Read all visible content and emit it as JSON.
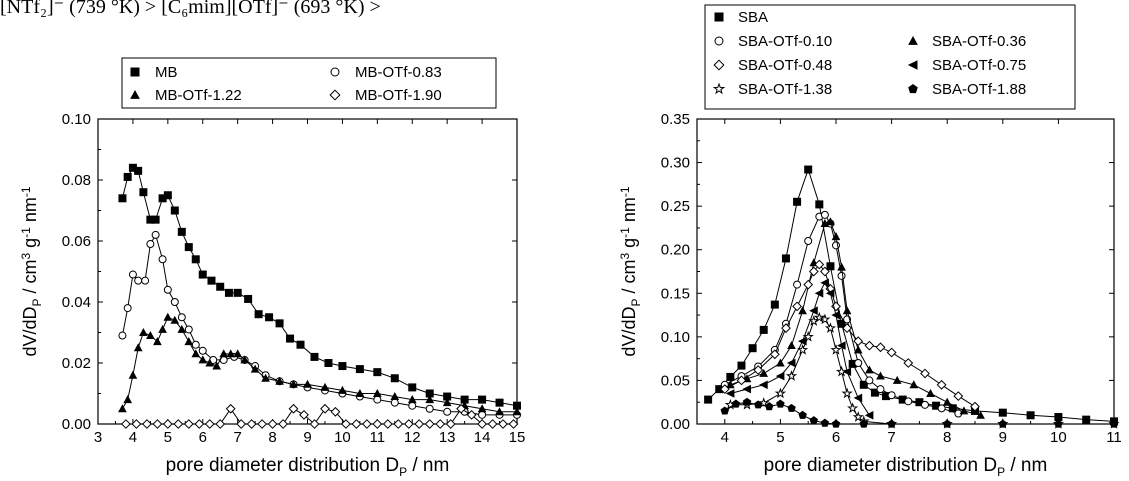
{
  "header_fragment": "[NTf₂]⁻ (739 °K) > [C₆mim][OTf]⁻ (693 °K) >",
  "chart_data": [
    {
      "type": "scatter",
      "title": "",
      "xlabel": "pore diameter distribution D_P / nm",
      "ylabel": "dV/dD_P / cm³ g⁻¹ nm⁻¹",
      "xlim": [
        3,
        15
      ],
      "ylim": [
        0,
        0.1
      ],
      "xticks": [
        3,
        4,
        5,
        6,
        7,
        8,
        9,
        10,
        11,
        12,
        13,
        14,
        15
      ],
      "yticks": [
        0.0,
        0.02,
        0.04,
        0.06,
        0.08,
        0.1
      ],
      "ytick_labels": [
        "0.00",
        "0.02",
        "0.04",
        "0.06",
        "0.08",
        "0.10"
      ],
      "legend": "top, two columns, boxed",
      "lines": "connected markers",
      "series": [
        {
          "name": "MB",
          "marker": "square-filled",
          "x": [
            3.7,
            3.85,
            4.0,
            4.15,
            4.3,
            4.5,
            4.65,
            4.85,
            5.0,
            5.2,
            5.4,
            5.6,
            5.8,
            6.0,
            6.25,
            6.5,
            6.75,
            7.0,
            7.3,
            7.6,
            7.9,
            8.2,
            8.5,
            8.8,
            9.2,
            9.6,
            10.0,
            10.5,
            11.0,
            11.5,
            12.0,
            12.5,
            13.0,
            13.5,
            14.0,
            14.5,
            15.0
          ],
          "y": [
            0.074,
            0.081,
            0.084,
            0.083,
            0.076,
            0.067,
            0.067,
            0.074,
            0.075,
            0.07,
            0.063,
            0.058,
            0.054,
            0.049,
            0.047,
            0.045,
            0.043,
            0.043,
            0.041,
            0.036,
            0.035,
            0.033,
            0.028,
            0.026,
            0.022,
            0.02,
            0.019,
            0.018,
            0.017,
            0.015,
            0.012,
            0.01,
            0.009,
            0.008,
            0.008,
            0.007,
            0.006
          ]
        },
        {
          "name": "MB-OTf-0.83",
          "marker": "circle-open",
          "x": [
            3.7,
            3.85,
            4.0,
            4.15,
            4.35,
            4.5,
            4.65,
            4.85,
            5.0,
            5.2,
            5.4,
            5.6,
            5.8,
            6.0,
            6.3,
            6.6,
            6.9,
            7.2,
            7.5,
            7.8,
            8.2,
            8.6,
            9.0,
            9.5,
            10.0,
            10.5,
            11.0,
            11.5,
            12.0,
            12.5,
            13.0,
            13.5,
            14.0,
            14.5,
            15.0
          ],
          "y": [
            0.029,
            0.038,
            0.049,
            0.047,
            0.047,
            0.059,
            0.062,
            0.054,
            0.044,
            0.04,
            0.035,
            0.031,
            0.026,
            0.024,
            0.021,
            0.021,
            0.022,
            0.021,
            0.019,
            0.016,
            0.014,
            0.013,
            0.012,
            0.011,
            0.01,
            0.009,
            0.008,
            0.007,
            0.006,
            0.005,
            0.004,
            0.004,
            0.003,
            0.003,
            0.003
          ]
        },
        {
          "name": "MB-OTf-1.22",
          "marker": "triangle-filled",
          "x": [
            3.7,
            3.85,
            4.0,
            4.15,
            4.3,
            4.5,
            4.7,
            4.85,
            5.0,
            5.2,
            5.4,
            5.6,
            5.8,
            6.0,
            6.2,
            6.4,
            6.6,
            6.8,
            7.0,
            7.2,
            7.5,
            7.8,
            8.2,
            8.6,
            9.0,
            9.5,
            10.0,
            10.5,
            11.0,
            11.5,
            12.0,
            12.5,
            13.0,
            13.5,
            14.0,
            14.5,
            15.0
          ],
          "y": [
            0.005,
            0.008,
            0.016,
            0.025,
            0.03,
            0.029,
            0.027,
            0.031,
            0.035,
            0.034,
            0.031,
            0.027,
            0.023,
            0.021,
            0.02,
            0.019,
            0.023,
            0.023,
            0.023,
            0.021,
            0.018,
            0.015,
            0.014,
            0.013,
            0.013,
            0.012,
            0.011,
            0.01,
            0.01,
            0.009,
            0.008,
            0.008,
            0.007,
            0.006,
            0.005,
            0.004,
            0.004
          ]
        },
        {
          "name": "MB-OTf-1.90",
          "marker": "diamond-open",
          "x": [
            3.8,
            4.1,
            4.4,
            4.7,
            5.0,
            5.3,
            5.6,
            5.9,
            6.2,
            6.5,
            6.8,
            7.1,
            7.4,
            7.7,
            8.0,
            8.3,
            8.6,
            8.9,
            9.2,
            9.5,
            9.8,
            10.1,
            10.4,
            10.7,
            11.0,
            11.3,
            11.6,
            11.9,
            12.2,
            12.5,
            12.8,
            13.1,
            13.4,
            13.7,
            14.0,
            14.3,
            14.6,
            14.9
          ],
          "y": [
            0.0,
            0.0,
            0.0,
            0.0,
            0.0,
            0.0,
            0.0,
            0.0,
            0.0,
            0.0,
            0.005,
            0.0,
            0.0,
            0.0,
            0.0,
            0.0,
            0.005,
            0.003,
            0.0,
            0.005,
            0.004,
            0.0,
            0.0,
            0.0,
            0.0,
            0.0,
            0.0,
            0.0,
            0.0,
            0.0,
            0.0,
            0.0,
            0.005,
            0.003,
            0.0,
            0.0,
            0.0,
            0.0
          ]
        }
      ]
    },
    {
      "type": "scatter",
      "title": "",
      "xlabel": "pore diameter distribution D_P / nm",
      "ylabel": "dV/dD_P / cm³ g⁻¹ nm⁻¹",
      "xlim": [
        3.5,
        11
      ],
      "ylim": [
        0,
        0.35
      ],
      "xticks": [
        4,
        5,
        6,
        7,
        8,
        9,
        10,
        11
      ],
      "yticks": [
        0.0,
        0.05,
        0.1,
        0.15,
        0.2,
        0.25,
        0.3,
        0.35
      ],
      "ytick_labels": [
        "0.00",
        "0.05",
        "0.10",
        "0.15",
        "0.20",
        "0.25",
        "0.30",
        "0.35"
      ],
      "legend": "top, two columns, boxed",
      "lines": "connected markers",
      "series": [
        {
          "name": "SBA",
          "marker": "square-filled",
          "x": [
            3.7,
            3.9,
            4.1,
            4.3,
            4.5,
            4.7,
            4.9,
            5.1,
            5.3,
            5.5,
            5.7,
            5.9,
            6.1,
            6.3,
            6.5,
            6.7,
            6.9,
            7.2,
            7.5,
            7.8,
            8.1,
            8.5,
            9.0,
            9.5,
            10.0,
            10.5,
            11.0
          ],
          "y": [
            0.028,
            0.04,
            0.054,
            0.067,
            0.087,
            0.108,
            0.137,
            0.19,
            0.255,
            0.292,
            0.252,
            0.181,
            0.115,
            0.069,
            0.045,
            0.036,
            0.032,
            0.028,
            0.025,
            0.021,
            0.018,
            0.015,
            0.013,
            0.01,
            0.008,
            0.005,
            0.003
          ]
        },
        {
          "name": "SBA-OTf-0.10",
          "marker": "circle-open",
          "x": [
            4.0,
            4.3,
            4.6,
            4.9,
            5.1,
            5.3,
            5.5,
            5.7,
            5.8,
            5.9,
            6.0,
            6.1,
            6.2,
            6.4,
            6.6,
            6.8,
            7.0,
            7.3,
            7.6,
            7.9,
            8.2
          ],
          "y": [
            0.045,
            0.055,
            0.066,
            0.085,
            0.115,
            0.16,
            0.21,
            0.238,
            0.24,
            0.23,
            0.205,
            0.17,
            0.12,
            0.07,
            0.05,
            0.04,
            0.033,
            0.026,
            0.022,
            0.018,
            0.012
          ]
        },
        {
          "name": "SBA-OTf-0.36",
          "marker": "triangle-filled",
          "x": [
            4.1,
            4.4,
            4.7,
            5.0,
            5.2,
            5.4,
            5.6,
            5.8,
            5.9,
            6.0,
            6.1,
            6.2,
            6.4,
            6.6,
            6.8,
            7.1,
            7.4,
            7.7,
            8.0,
            8.3,
            8.6
          ],
          "y": [
            0.045,
            0.052,
            0.058,
            0.07,
            0.09,
            0.13,
            0.185,
            0.23,
            0.232,
            0.215,
            0.18,
            0.13,
            0.085,
            0.062,
            0.055,
            0.05,
            0.045,
            0.035,
            0.025,
            0.015,
            0.01
          ]
        },
        {
          "name": "SBA-OTf-0.48",
          "marker": "diamond-open",
          "x": [
            4.0,
            4.3,
            4.6,
            4.9,
            5.1,
            5.3,
            5.5,
            5.6,
            5.7,
            5.8,
            5.9,
            6.0,
            6.2,
            6.4,
            6.6,
            6.8,
            7.0,
            7.3,
            7.6,
            7.9,
            8.2,
            8.5
          ],
          "y": [
            0.04,
            0.05,
            0.062,
            0.08,
            0.11,
            0.135,
            0.16,
            0.175,
            0.183,
            0.175,
            0.155,
            0.135,
            0.11,
            0.095,
            0.09,
            0.088,
            0.082,
            0.07,
            0.058,
            0.045,
            0.032,
            0.02
          ]
        },
        {
          "name": "SBA-OTf-0.75",
          "marker": "triangle-left-filled",
          "x": [
            4.1,
            4.4,
            4.7,
            5.0,
            5.2,
            5.4,
            5.6,
            5.7,
            5.8,
            5.9,
            6.0,
            6.1,
            6.2,
            6.4,
            6.6
          ],
          "y": [
            0.035,
            0.04,
            0.045,
            0.055,
            0.07,
            0.095,
            0.13,
            0.15,
            0.162,
            0.15,
            0.125,
            0.09,
            0.06,
            0.03,
            0.01
          ]
        },
        {
          "name": "SBA-OTf-1.38",
          "marker": "star-open",
          "x": [
            4.1,
            4.4,
            4.7,
            5.0,
            5.2,
            5.4,
            5.5,
            5.6,
            5.7,
            5.8,
            5.9,
            6.0,
            6.1,
            6.2,
            6.3,
            6.4,
            6.5,
            7.0,
            8.0,
            9.0,
            10.0,
            11.0
          ],
          "y": [
            0.022,
            0.022,
            0.024,
            0.035,
            0.055,
            0.085,
            0.1,
            0.118,
            0.122,
            0.12,
            0.11,
            0.085,
            0.06,
            0.035,
            0.018,
            0.008,
            0.003,
            0.0,
            0.0,
            0.0,
            0.0,
            0.0
          ]
        },
        {
          "name": "SBA-OTf-1.88",
          "marker": "pentagon-filled",
          "x": [
            4.0,
            4.2,
            4.4,
            4.6,
            4.8,
            5.0,
            5.2,
            5.4,
            5.6,
            5.8,
            6.0,
            6.5,
            7.0,
            8.0,
            9.0,
            10.0,
            11.0
          ],
          "y": [
            0.015,
            0.023,
            0.025,
            0.022,
            0.02,
            0.023,
            0.018,
            0.01,
            0.004,
            0.001,
            0.0,
            0.0,
            0.0,
            0.0,
            0.0,
            0.0,
            0.0
          ]
        }
      ]
    }
  ]
}
